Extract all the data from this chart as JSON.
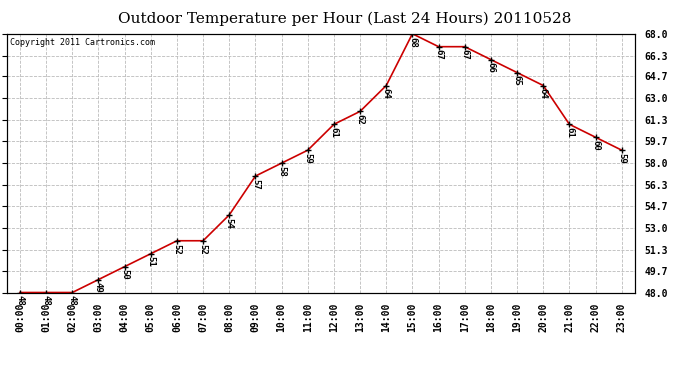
{
  "title": "Outdoor Temperature per Hour (Last 24 Hours) 20110528",
  "copyright": "Copyright 2011 Cartronics.com",
  "hours": [
    "00:00",
    "01:00",
    "02:00",
    "03:00",
    "04:00",
    "05:00",
    "06:00",
    "07:00",
    "08:00",
    "09:00",
    "10:00",
    "11:00",
    "12:00",
    "13:00",
    "14:00",
    "15:00",
    "16:00",
    "17:00",
    "18:00",
    "19:00",
    "20:00",
    "21:00",
    "22:00",
    "23:00"
  ],
  "temps": [
    48,
    48,
    48,
    49,
    50,
    51,
    52,
    52,
    54,
    57,
    58,
    59,
    61,
    62,
    64,
    68,
    67,
    67,
    66,
    65,
    64,
    61,
    60,
    59
  ],
  "line_color": "#cc0000",
  "marker_color": "#000000",
  "bg_color": "#ffffff",
  "grid_color": "#bbbbbb",
  "ylim_min": 48.0,
  "ylim_max": 68.0,
  "ytick_values": [
    48.0,
    49.7,
    51.3,
    53.0,
    54.7,
    56.3,
    58.0,
    59.7,
    61.3,
    63.0,
    64.7,
    66.3,
    68.0
  ],
  "title_fontsize": 11,
  "label_fontsize": 6.5,
  "tick_fontsize": 7,
  "copyright_fontsize": 6
}
